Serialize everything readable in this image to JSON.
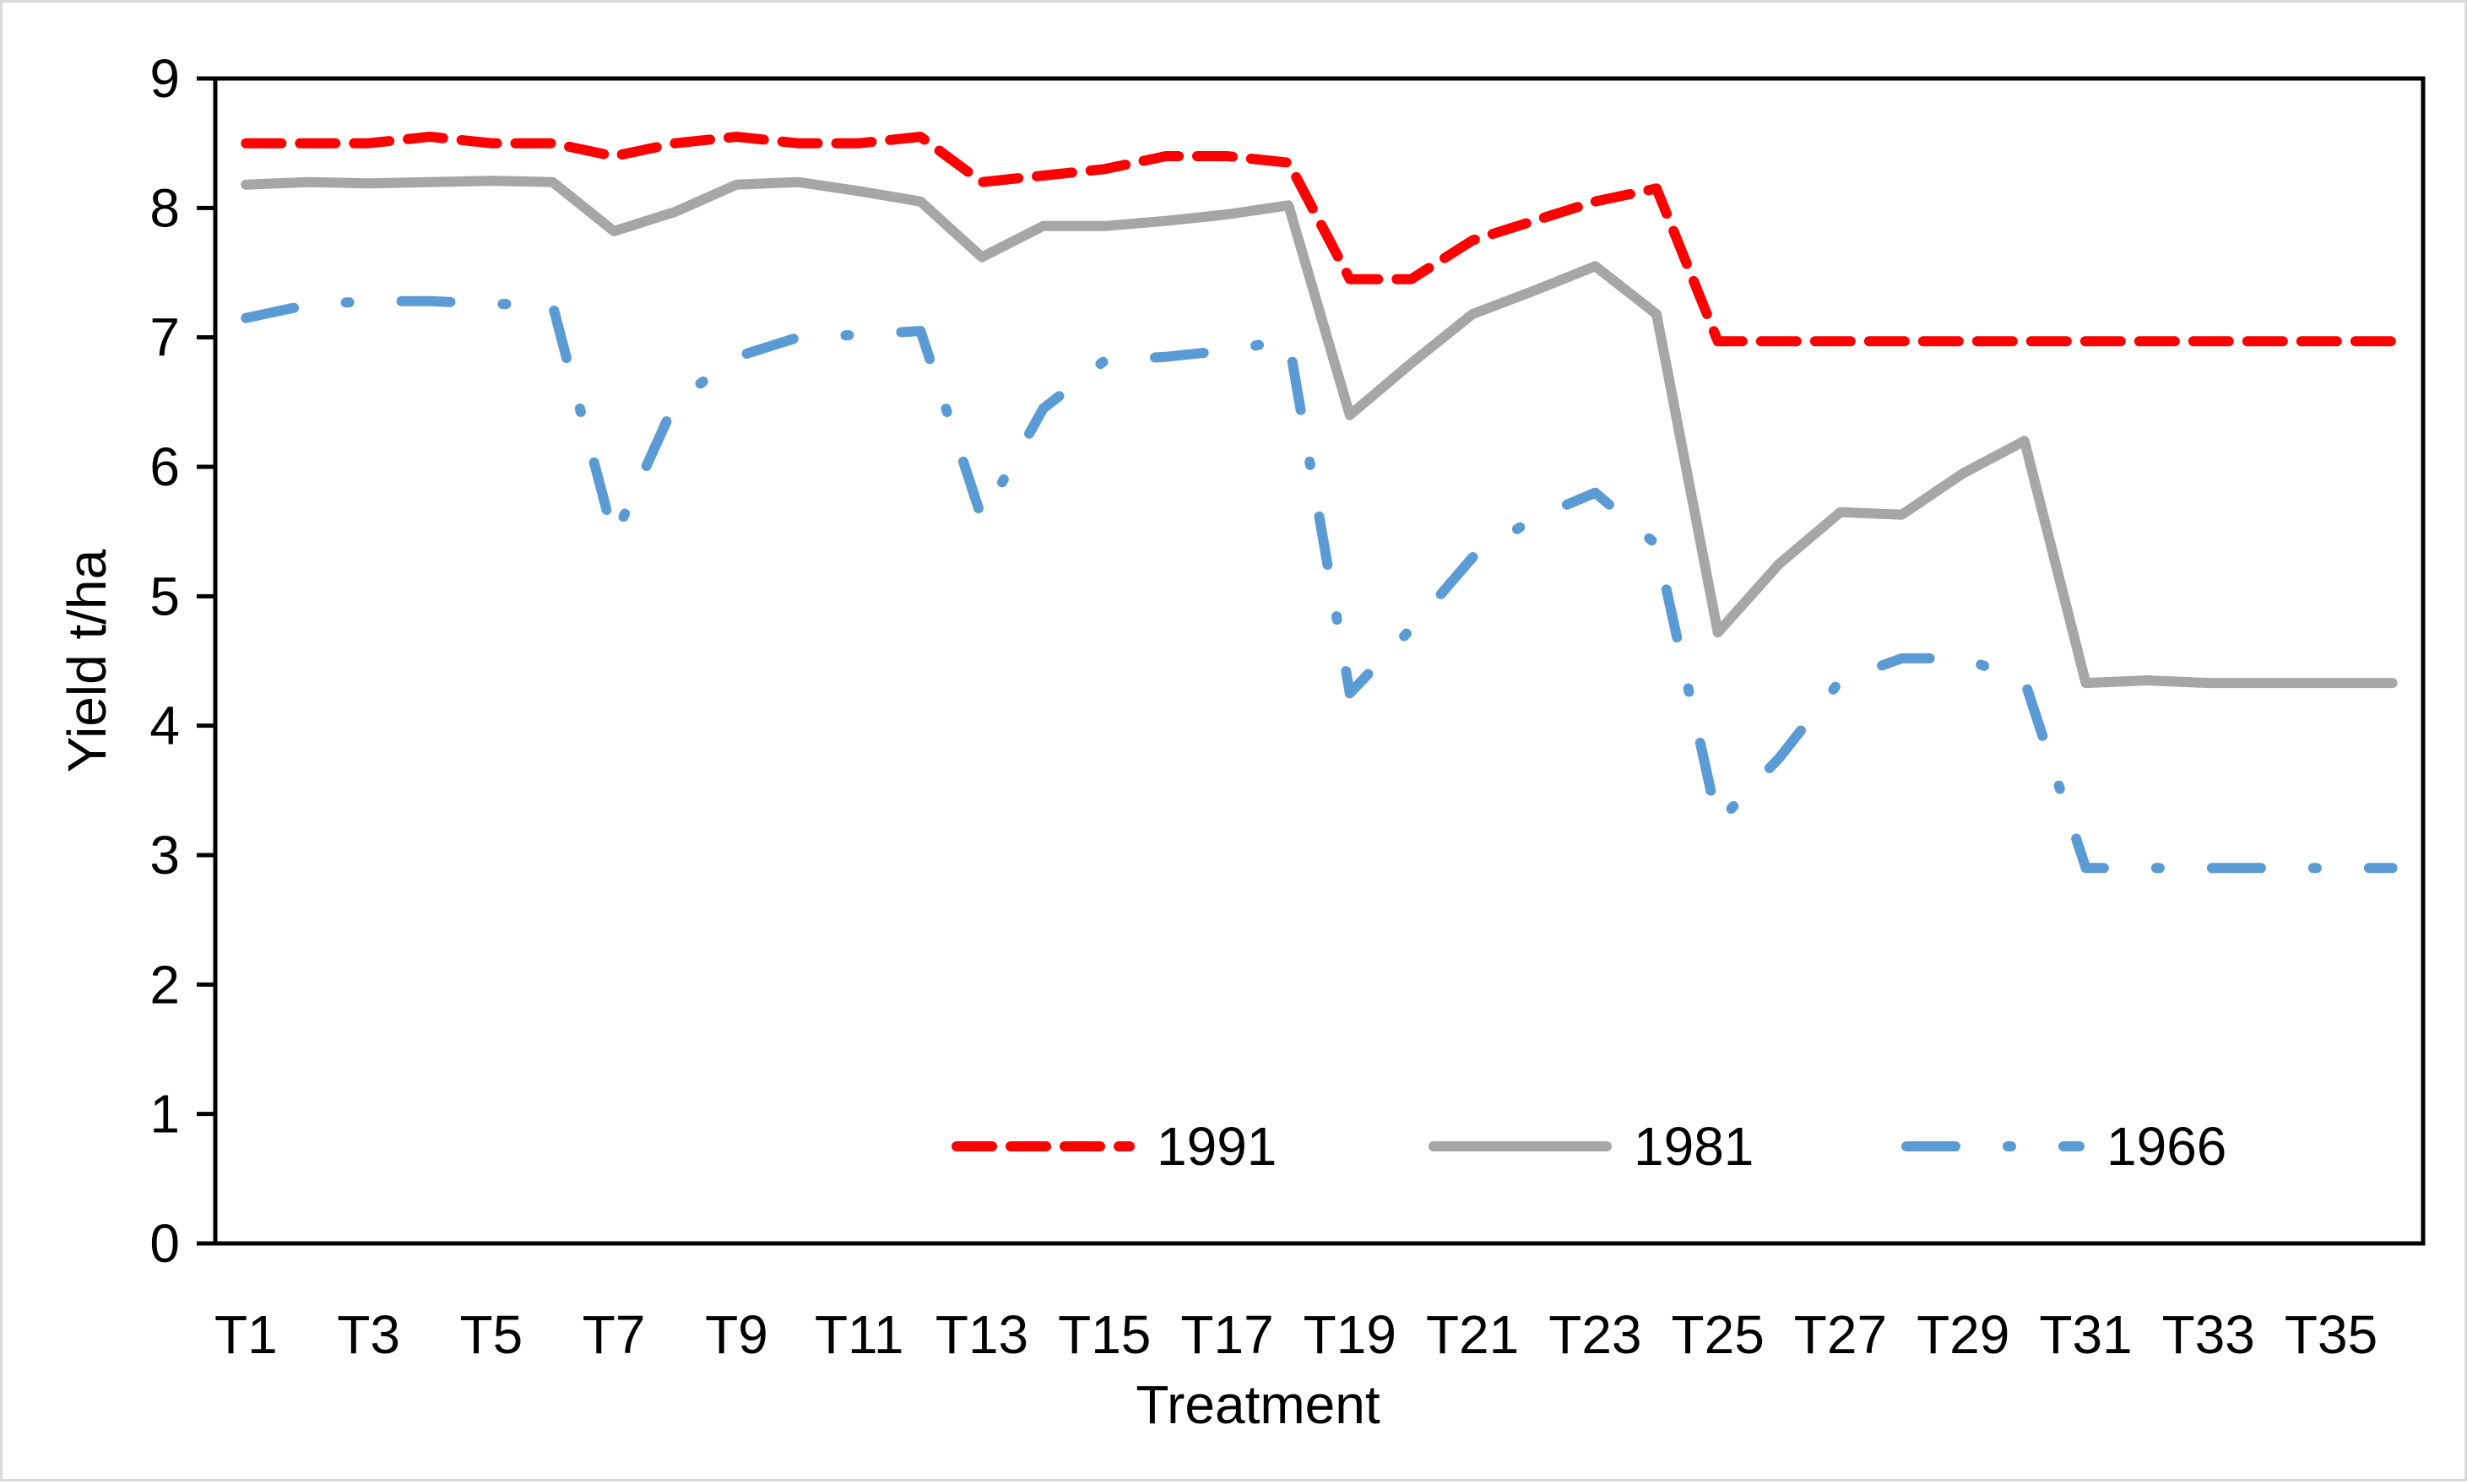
{
  "chart_data": {
    "type": "line",
    "title": "",
    "xlabel": "Treatment",
    "ylabel": "Yield  t/ha",
    "ylim": [
      0,
      9
    ],
    "yticks": [
      0,
      1,
      2,
      3,
      4,
      5,
      6,
      7,
      8,
      9
    ],
    "grid": false,
    "legend_position": "bottom-right",
    "categories": [
      "T1",
      "T2",
      "T3",
      "T4",
      "T5",
      "T6",
      "T7",
      "T8",
      "T9",
      "T10",
      "T11",
      "T12",
      "T13",
      "T14",
      "T15",
      "T16",
      "T17",
      "T18",
      "T19",
      "T20",
      "T21",
      "T22",
      "T23",
      "T24",
      "T25",
      "T26",
      "T27",
      "T28",
      "T29",
      "T30",
      "T31",
      "T32",
      "T33",
      "T34",
      "T35",
      "T36"
    ],
    "xtick_labels": [
      "T1",
      "T3",
      "T5",
      "T7",
      "T9",
      "T11",
      "T13",
      "T15",
      "T17",
      "T19",
      "T21",
      "T23",
      "T25",
      "T27",
      "T29",
      "T31",
      "T33",
      "T35"
    ],
    "series": [
      {
        "name": "1991",
        "color": "#ff0000",
        "dash": "dashed",
        "values": [
          8.5,
          8.5,
          8.5,
          8.55,
          8.5,
          8.5,
          8.4,
          8.5,
          8.55,
          8.5,
          8.5,
          8.55,
          8.2,
          8.25,
          8.3,
          8.4,
          8.4,
          8.35,
          7.45,
          7.45,
          7.75,
          7.9,
          8.05,
          8.15,
          6.97,
          6.97,
          6.97,
          6.97,
          6.97,
          6.97,
          6.97,
          6.97,
          6.97,
          6.97,
          6.97,
          6.97
        ]
      },
      {
        "name": "1981",
        "color": "#a6a6a6",
        "dash": "solid",
        "values": [
          8.18,
          8.2,
          8.19,
          8.2,
          8.21,
          8.2,
          7.82,
          7.97,
          8.18,
          8.2,
          8.13,
          8.05,
          7.62,
          7.86,
          7.86,
          7.9,
          7.95,
          8.02,
          6.4,
          6.8,
          7.18,
          7.36,
          7.55,
          7.18,
          4.72,
          5.25,
          5.65,
          5.63,
          5.95,
          6.2,
          4.33,
          4.35,
          4.33,
          4.33,
          4.33,
          4.33
        ]
      },
      {
        "name": "1966",
        "color": "#5b9bd5",
        "dash": "dash-dot",
        "values": [
          7.15,
          7.25,
          7.28,
          7.28,
          7.26,
          7.25,
          5.45,
          6.5,
          6.85,
          7.0,
          7.02,
          7.05,
          5.6,
          6.45,
          6.82,
          6.85,
          6.9,
          6.98,
          4.25,
          4.75,
          5.3,
          5.6,
          5.8,
          5.4,
          3.25,
          3.75,
          4.35,
          4.52,
          4.52,
          4.35,
          2.9,
          2.9,
          2.9,
          2.9,
          2.9,
          2.9
        ]
      }
    ]
  }
}
